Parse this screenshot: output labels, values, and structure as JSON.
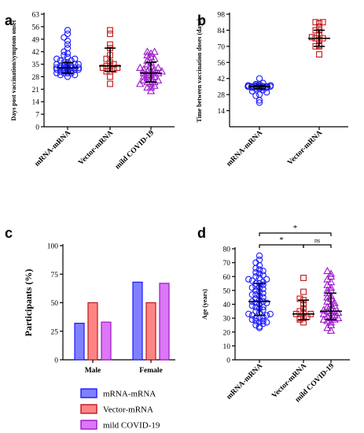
{
  "panel_labels": [
    "a",
    "b",
    "c",
    "d"
  ],
  "groups": [
    "mRNA-mRNA",
    "Vector-mRNA",
    "mild COVID-19"
  ],
  "colors": {
    "mRNA-mRNA": "#1a1aff",
    "Vector-mRNA": "#c0181b",
    "mild COVID-19": "#9a16c9"
  },
  "legend_fill": {
    "mRNA-mRNA": "#8080ff",
    "Vector-mRNA": "#ff8585",
    "mild COVID-19": "#dd77f5"
  },
  "chart_data": [
    {
      "panel": "a",
      "type": "scatter",
      "ylabel": "Days post vaccination/symptom onset",
      "ylim": [
        0,
        63
      ],
      "yticks": [
        0,
        7,
        14,
        21,
        28,
        35,
        42,
        49,
        56,
        63
      ],
      "categories": [
        "mRNA-mRNA",
        "Vector-mRNA",
        "mild COVID-19"
      ],
      "markers": [
        "circle",
        "square",
        "triangle"
      ],
      "series": [
        {
          "name": "mRNA-mRNA",
          "median": 33,
          "q1": 30,
          "q3": 36,
          "values": [
            30,
            30,
            30,
            31,
            31,
            31,
            31,
            32,
            32,
            32,
            32,
            32,
            33,
            33,
            33,
            33,
            33,
            33,
            33,
            34,
            34,
            34,
            34,
            35,
            35,
            35,
            35,
            36,
            36,
            37,
            37,
            38,
            38,
            39,
            40,
            41,
            42,
            44,
            46,
            48,
            50,
            52,
            54,
            28,
            29,
            29,
            30,
            31,
            32,
            33
          ]
        },
        {
          "name": "Vector-mRNA",
          "median": 34,
          "q1": 31,
          "q3": 44,
          "values": [
            24,
            28,
            31,
            31,
            32,
            33,
            33,
            34,
            34,
            35,
            36,
            38,
            40,
            44,
            46,
            52,
            54
          ]
        },
        {
          "name": "mild COVID-19",
          "median": 30,
          "q1": 25,
          "q3": 36,
          "values": [
            20,
            22,
            22,
            23,
            24,
            25,
            25,
            26,
            27,
            27,
            28,
            28,
            29,
            29,
            30,
            30,
            30,
            31,
            31,
            32,
            32,
            33,
            33,
            34,
            35,
            36,
            37,
            38,
            39,
            40,
            41,
            42,
            42,
            26,
            24,
            31
          ]
        }
      ]
    },
    {
      "panel": "b",
      "type": "scatter",
      "ylabel": "Time between vaccination doses (days)",
      "ylim": [
        0,
        98
      ],
      "yticks": [
        14,
        28,
        42,
        56,
        70,
        84,
        98
      ],
      "categories": [
        "mRNA-mRNA",
        "Vector-mRNA"
      ],
      "markers": [
        "circle",
        "square"
      ],
      "series": [
        {
          "name": "mRNA-mRNA",
          "median": 35,
          "q1": 33,
          "q3": 36,
          "values": [
            35,
            35,
            35,
            35,
            35,
            35,
            35,
            35,
            35,
            35,
            34,
            34,
            34,
            36,
            36,
            36,
            33,
            33,
            37,
            37,
            38,
            32,
            31,
            30,
            42,
            28,
            27,
            23,
            21,
            34,
            36,
            35,
            35,
            35,
            35
          ]
        },
        {
          "name": "Vector-mRNA",
          "median": 77,
          "q1": 70,
          "q3": 84,
          "values": [
            63,
            70,
            70,
            71,
            75,
            77,
            77,
            78,
            80,
            84,
            84,
            87,
            90,
            91,
            91
          ]
        }
      ]
    },
    {
      "panel": "c",
      "type": "bar",
      "ylabel": "Participants (%)",
      "ylim": [
        0,
        100
      ],
      "yticks": [
        0,
        25,
        50,
        75,
        100
      ],
      "categories": [
        "Male",
        "Female"
      ],
      "series": [
        {
          "name": "mRNA-mRNA",
          "values": [
            32,
            68
          ]
        },
        {
          "name": "Vector-mRNA",
          "values": [
            50,
            50
          ]
        },
        {
          "name": "mild COVID-19",
          "values": [
            33,
            67
          ]
        }
      ],
      "legend": [
        "mRNA-mRNA",
        "Vector-mRNA",
        "mild COVID-19"
      ],
      "legend_position": "bottom"
    },
    {
      "panel": "d",
      "type": "scatter",
      "ylabel": "Age (years)",
      "ylim": [
        0,
        80
      ],
      "yticks": [
        0,
        10,
        20,
        30,
        40,
        50,
        60,
        70,
        80
      ],
      "categories": [
        "mRNA-mRNA",
        "Vector-mRNA",
        "mild COVID-19"
      ],
      "markers": [
        "circle",
        "square",
        "triangle"
      ],
      "series": [
        {
          "name": "mRNA-mRNA",
          "median": 42,
          "q1": 32,
          "q3": 55,
          "values": [
            23,
            24,
            25,
            26,
            27,
            28,
            28,
            29,
            30,
            30,
            31,
            32,
            32,
            33,
            34,
            35,
            36,
            37,
            38,
            38,
            39,
            40,
            41,
            42,
            42,
            43,
            44,
            45,
            46,
            47,
            48,
            49,
            50,
            51,
            52,
            53,
            54,
            55,
            55,
            56,
            57,
            58,
            59,
            60,
            61,
            62,
            63,
            64,
            65,
            66,
            68,
            70,
            72,
            75,
            27,
            33,
            41,
            47,
            52,
            58
          ]
        },
        {
          "name": "Vector-mRNA",
          "median": 33,
          "q1": 29,
          "q3": 43,
          "values": [
            27,
            29,
            30,
            30,
            31,
            33,
            33,
            34,
            35,
            37,
            40,
            43,
            44,
            49,
            59
          ]
        },
        {
          "name": "mild COVID-19",
          "median": 35,
          "q1": 29,
          "q3": 48,
          "values": [
            21,
            23,
            25,
            27,
            28,
            29,
            29,
            30,
            31,
            32,
            33,
            34,
            35,
            35,
            36,
            37,
            38,
            39,
            40,
            42,
            44,
            46,
            48,
            50,
            52,
            54,
            56,
            58,
            60,
            62,
            64,
            30,
            34,
            41,
            45,
            50
          ]
        }
      ],
      "significance": [
        {
          "from": "mRNA-mRNA",
          "to": "mild COVID-19",
          "label": "*"
        },
        {
          "from": "mRNA-mRNA",
          "to": "Vector-mRNA",
          "label": "*"
        },
        {
          "from": "Vector-mRNA",
          "to": "mild COVID-19",
          "label": "ns"
        }
      ]
    }
  ]
}
